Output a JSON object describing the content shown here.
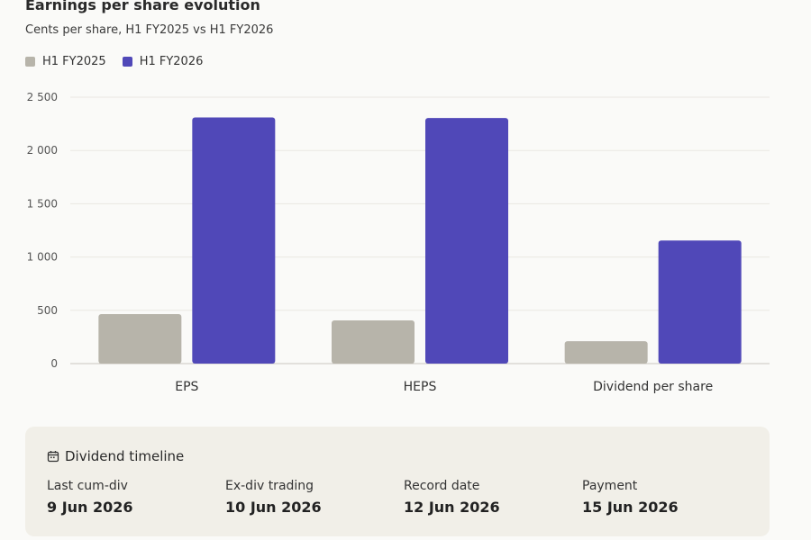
{
  "header": {
    "title": "Earnings per share evolution",
    "subtitle": "Cents per share, H1 FY2025 vs H1 FY2026"
  },
  "legend": [
    {
      "label": "H1 FY2025",
      "color": "#b7b4aa"
    },
    {
      "label": "H1 FY2026",
      "color": "#5048b8"
    }
  ],
  "chart_data": {
    "type": "bar",
    "categories": [
      "EPS",
      "HEPS",
      "Dividend per share"
    ],
    "series": [
      {
        "name": "H1 FY2025",
        "color": "#b7b4aa",
        "values": [
          465,
          405,
          210
        ]
      },
      {
        "name": "H1 FY2026",
        "color": "#5048b8",
        "values": [
          2310,
          2305,
          1155
        ]
      }
    ],
    "ylim": [
      0,
      2500
    ],
    "yticks": [
      0,
      500,
      1000,
      1500,
      2000,
      2500
    ],
    "ytick_labels": [
      "0",
      "500",
      "1 000",
      "1 500",
      "2 000",
      "2 500"
    ],
    "grid": true,
    "legend_position": "top-left"
  },
  "timeline": {
    "title": "Dividend timeline",
    "icon": "calendar-icon",
    "items": [
      {
        "label": "Last cum-div",
        "value": "9 Jun 2026"
      },
      {
        "label": "Ex-div trading",
        "value": "10 Jun 2026"
      },
      {
        "label": "Record date",
        "value": "12 Jun 2026"
      },
      {
        "label": "Payment",
        "value": "15 Jun 2026"
      }
    ]
  }
}
